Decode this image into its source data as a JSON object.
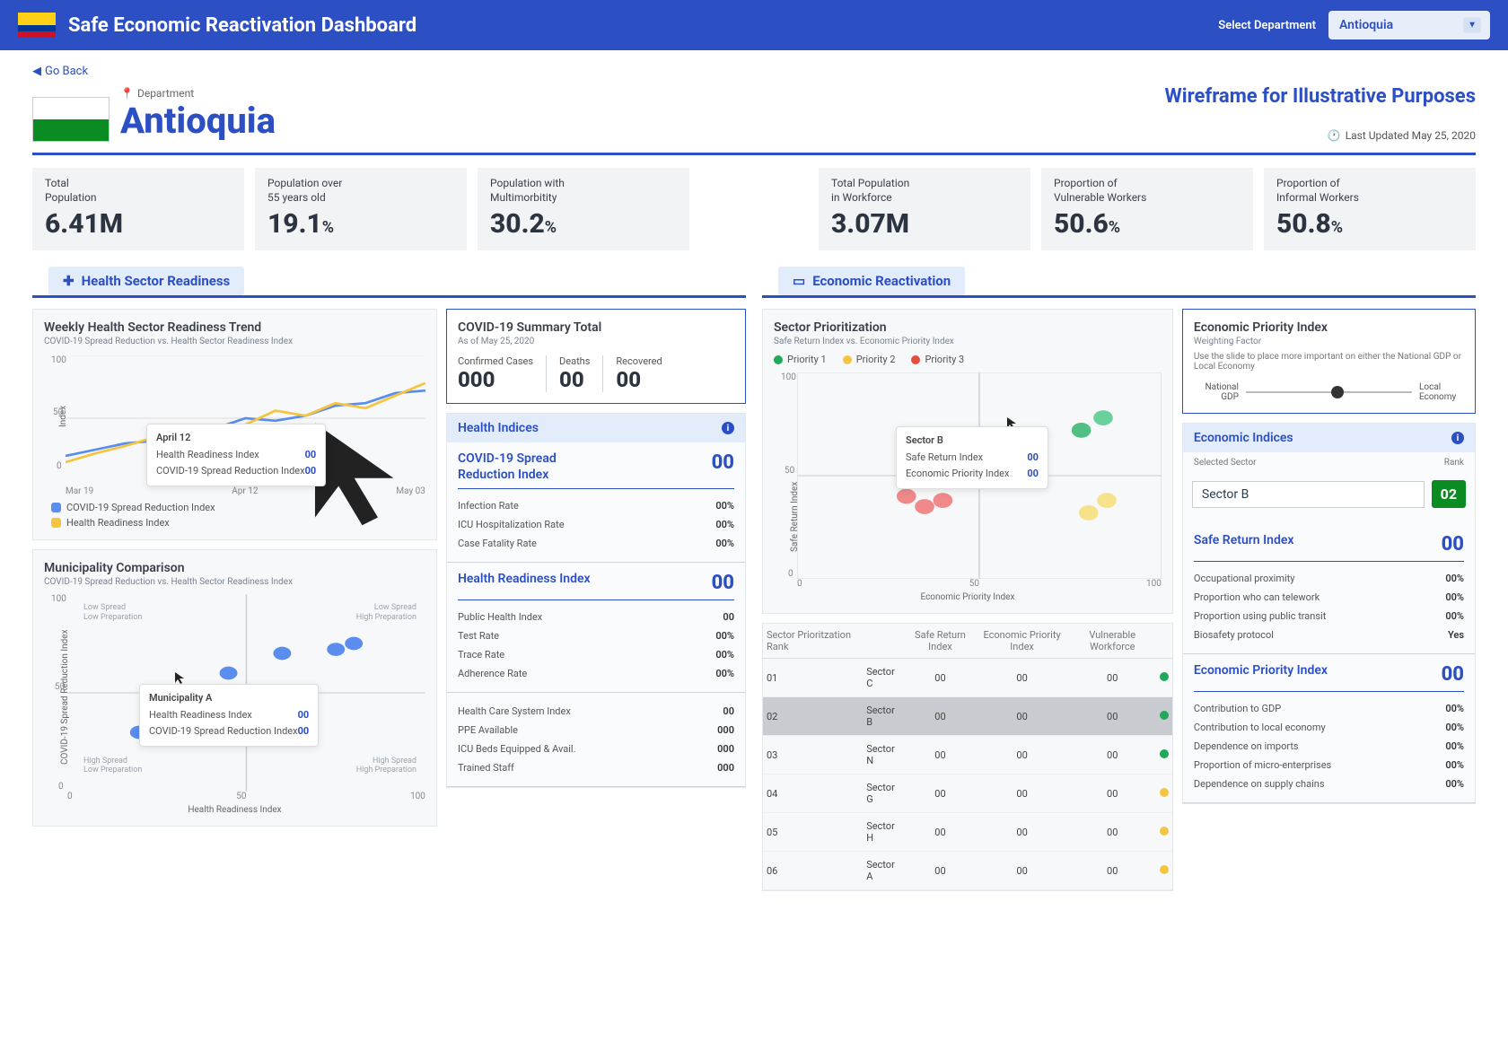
{
  "header": {
    "title": "Safe Economic Reactivation Dashboard",
    "select_label": "Select Department",
    "selected": "Antioquia"
  },
  "nav": {
    "back": "Go Back"
  },
  "dept": {
    "label": "Department",
    "name": "Antioquia",
    "wireframe": "Wireframe for Illustrative Purposes",
    "updated": "Last Updated May 25, 2020"
  },
  "kpis": [
    {
      "label": "Total\nPopulation",
      "value": "6.41M"
    },
    {
      "label": "Population over\n55 years old",
      "value": "19.1",
      "suffix": "%"
    },
    {
      "label": "Population with\nMultimorbitity",
      "value": "30.2",
      "suffix": "%"
    },
    {
      "label": "Total Population\nin Workforce",
      "value": "3.07M"
    },
    {
      "label": "Proportion of\nVulnerable Workers",
      "value": "50.6",
      "suffix": "%"
    },
    {
      "label": "Proportion of\nInformal Workers",
      "value": "50.8",
      "suffix": "%"
    }
  ],
  "sections": {
    "health": "Health Sector Readiness",
    "econ": "Economic Reactivation"
  },
  "trend": {
    "title": "Weekly Health Sector Readiness Trend",
    "sub": "COVID-19 Spread Reduction vs. Health Sector Readiness Index",
    "ylab": "Index",
    "ylim": [
      0,
      100
    ],
    "xticks": [
      "Mar 19",
      "Apr 12",
      "May 03"
    ],
    "series": [
      {
        "name": "COVID-19 Spread Reduction Index",
        "color": "#5b8def",
        "values": [
          20,
          25,
          30,
          32,
          35,
          42,
          50,
          48,
          52,
          60,
          62,
          70,
          72
        ]
      },
      {
        "name": "Health Readiness Index",
        "color": "#f5c542",
        "values": [
          15,
          22,
          28,
          35,
          40,
          38,
          45,
          56,
          52,
          62,
          58,
          68,
          78
        ]
      }
    ],
    "tooltip": {
      "date": "April 12",
      "rows": [
        [
          "Health Readiness Index",
          "00"
        ],
        [
          "COVID-19 Spread Reduction Index",
          "00"
        ]
      ]
    }
  },
  "covid": {
    "title": "COVID-19 Summary Total",
    "sub": "As of May 25, 2020",
    "cells": [
      [
        "Confirmed Cases",
        "000"
      ],
      [
        "Deaths",
        "00"
      ],
      [
        "Recovered",
        "00"
      ]
    ]
  },
  "health_indices": {
    "title": "Health Indices",
    "groups": [
      {
        "name": "COVID-19 Spread Reduction Index",
        "val": "00",
        "subs": [
          [
            "Infection Rate",
            "00%"
          ],
          [
            "ICU Hospitalization Rate",
            "00%"
          ],
          [
            "Case Fatality Rate",
            "00%"
          ]
        ]
      },
      {
        "name": "Health Readiness Index",
        "val": "00",
        "subs": [
          [
            "Public Health Index",
            "00"
          ],
          [
            "Test Rate",
            "00%"
          ],
          [
            "Trace Rate",
            "00%"
          ],
          [
            "Adherence Rate",
            "00%"
          ]
        ]
      },
      {
        "name": "",
        "val": "",
        "subs": [
          [
            "Health Care System Index",
            "00"
          ],
          [
            "PPE Available",
            "000"
          ],
          [
            "ICU Beds Equipped & Avail.",
            "000"
          ],
          [
            "Trained Staff",
            "000"
          ]
        ]
      }
    ]
  },
  "muni": {
    "title": "Municipality Comparison",
    "sub": "COVID-19 Spread Reduction vs. Health Sector Readiness Index",
    "xlab": "Health Readiness Index",
    "ylab": "COVID-19 Spread Reduction Index",
    "lim": [
      0,
      100
    ],
    "quads": [
      "Low Spread\nLow Preparation",
      "Low Spread\nHigh Preparation",
      "High Spread\nLow Preparation",
      "High Spread\nHigh Preparation"
    ],
    "points": [
      [
        20,
        30
      ],
      [
        30,
        28
      ],
      [
        35,
        32
      ],
      [
        45,
        60
      ],
      [
        60,
        70
      ],
      [
        75,
        72
      ],
      [
        80,
        75
      ]
    ],
    "point_color": "#5b8def",
    "tooltip": {
      "title": "Municipality A",
      "rows": [
        [
          "Health Readiness Index",
          "00"
        ],
        [
          "COVID-19 Spread Reduction Index",
          "00"
        ]
      ]
    }
  },
  "sector_scatter": {
    "title": "Sector Prioritization",
    "sub": "Safe Return Index vs. Economic Priority Index",
    "xlab": "Economic Priority Index",
    "ylab": "Safe Return Index",
    "lim": [
      0,
      100
    ],
    "legend": [
      [
        "Priority 1",
        "#1faa59"
      ],
      [
        "Priority 2",
        "#f5c542"
      ],
      [
        "Priority 3",
        "#e74c3c"
      ]
    ],
    "points": [
      {
        "x": 30,
        "y": 40,
        "c": "#f08a8a"
      },
      {
        "x": 35,
        "y": 35,
        "c": "#f08a8a"
      },
      {
        "x": 40,
        "y": 38,
        "c": "#f08a8a"
      },
      {
        "x": 42,
        "y": 48,
        "c": "#f08a8a"
      },
      {
        "x": 80,
        "y": 32,
        "c": "#f7e28c"
      },
      {
        "x": 85,
        "y": 38,
        "c": "#f7e28c"
      },
      {
        "x": 84,
        "y": 78,
        "c": "#6bd19c"
      },
      {
        "x": 78,
        "y": 72,
        "c": "#4fbf83"
      }
    ],
    "tooltip": {
      "title": "Sector B",
      "rows": [
        [
          "Safe Return Index",
          "00"
        ],
        [
          "Economic Priority Index",
          "00"
        ]
      ]
    }
  },
  "econ_priority": {
    "title": "Economic Priority Index",
    "sub": "Weighting Factor",
    "desc": "Use the slide to place more important on either the National GDP or Local Economy",
    "left": "National GDP",
    "right": "Local Economy"
  },
  "econ_indices": {
    "title": "Economic Indices",
    "sel_lbl": "Selected Sector",
    "rank_lbl": "Rank",
    "sector": "Sector B",
    "rank": "02",
    "groups": [
      {
        "name": "Safe Return Index",
        "val": "00",
        "subs": [
          [
            "Occupational proximity",
            "00%"
          ],
          [
            "Proportion who can telework",
            "00%"
          ],
          [
            "Proportion using public transit",
            "00%"
          ],
          [
            "Biosafety protocol",
            "Yes"
          ]
        ]
      },
      {
        "name": "Economic Priority Index",
        "val": "00",
        "subs": [
          [
            "Contribution to GDP",
            "00%"
          ],
          [
            "Contribution to local economy",
            "00%"
          ],
          [
            "Dependence on imports",
            "00%"
          ],
          [
            "Proportion of micro-enterprises",
            "00%"
          ],
          [
            "Dependence on supply chains",
            "00%"
          ]
        ]
      }
    ]
  },
  "sector_table": {
    "cols": [
      "Sector Prioritzation Rank",
      "",
      "Safe Return Index",
      "Economic Priority Index",
      "Vulnerable Workforce",
      ""
    ],
    "rows": [
      [
        "01",
        "Sector C",
        "00",
        "00",
        "00",
        "#1faa59"
      ],
      [
        "02",
        "Sector B",
        "00",
        "00",
        "00",
        "#1faa59"
      ],
      [
        "03",
        "Sector N",
        "00",
        "00",
        "00",
        "#1faa59"
      ],
      [
        "04",
        "Sector G",
        "00",
        "00",
        "00",
        "#f5c542"
      ],
      [
        "05",
        "Sector H",
        "00",
        "00",
        "00",
        "#f5c542"
      ],
      [
        "06",
        "Sector A",
        "00",
        "00",
        "00",
        "#f5c542"
      ]
    ],
    "highlight": 1
  }
}
